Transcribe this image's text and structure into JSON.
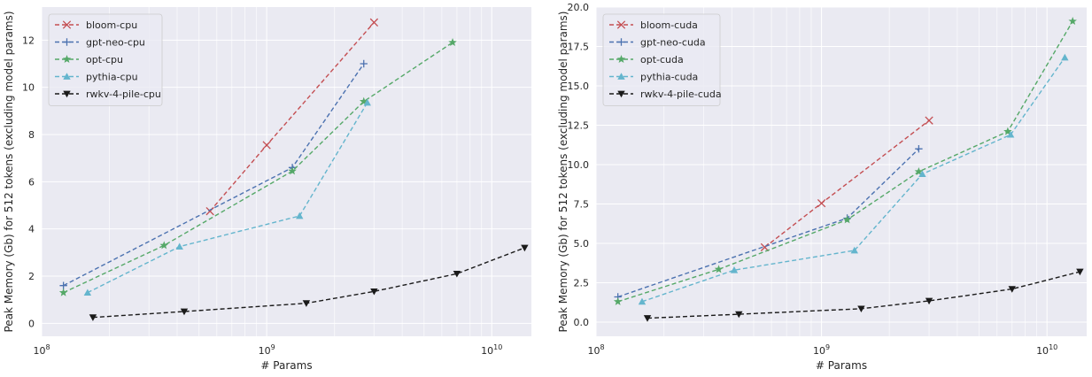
{
  "chart_data": [
    {
      "type": "line",
      "xscale": "log",
      "xlabel": "# Params",
      "ylabel": "Peak Memory (Gb) for 512 tokens (excluding model params)",
      "xlim": [
        100000000,
        15000000000
      ],
      "ylim": [
        -0.55,
        13.4
      ],
      "yticks": [
        0,
        2,
        4,
        6,
        8,
        10,
        12
      ],
      "ytick_labels": [
        "0",
        "2",
        "4",
        "6",
        "8",
        "10",
        "12"
      ],
      "xticks": [
        100000000,
        1000000000,
        10000000000
      ],
      "xtick_labels": [
        {
          "base": "10",
          "exp": "8"
        },
        {
          "base": "10",
          "exp": "9"
        },
        {
          "base": "10",
          "exp": "10"
        }
      ],
      "grid": true,
      "legend": "top-left",
      "series": [
        {
          "name": "bloom-cpu",
          "color": "#c44e52",
          "marker": "x",
          "x": [
            560000000,
            1000000000,
            3000000000
          ],
          "y": [
            4.75,
            7.55,
            12.75
          ]
        },
        {
          "name": "gpt-neo-cpu",
          "color": "#4c72b0",
          "marker": "plus",
          "x": [
            125000000,
            1300000000,
            2700000000
          ],
          "y": [
            1.6,
            6.6,
            11.0
          ]
        },
        {
          "name": "opt-cpu",
          "color": "#55a868",
          "marker": "star",
          "x": [
            125000000,
            350000000,
            1300000000,
            2700000000,
            6700000000
          ],
          "y": [
            1.3,
            3.3,
            6.45,
            9.4,
            11.9
          ]
        },
        {
          "name": "pythia-cpu",
          "color": "#64b5cd",
          "marker": "triangle-up",
          "x": [
            160000000,
            410000000,
            1400000000,
            2800000000
          ],
          "y": [
            1.3,
            3.25,
            4.55,
            9.35
          ]
        },
        {
          "name": "rwkv-4-pile-cpu",
          "color": "#1a1a1a",
          "marker": "triangle-down",
          "x": [
            169000000,
            430000000,
            1500000000,
            3000000000,
            7000000000,
            14000000000
          ],
          "y": [
            0.25,
            0.5,
            0.85,
            1.35,
            2.1,
            3.2
          ]
        }
      ]
    },
    {
      "type": "line",
      "xscale": "log",
      "xlabel": "# Params",
      "ylabel": "Peak Memory (Gb) for 512 tokens (excluding model params)",
      "xlim": [
        100000000,
        15000000000
      ],
      "ylim": [
        -0.9,
        20.0
      ],
      "yticks": [
        0,
        2.5,
        5,
        7.5,
        10,
        12.5,
        15,
        17.5,
        20
      ],
      "ytick_labels": [
        "0.0",
        "2.5",
        "5.0",
        "7.5",
        "10.0",
        "12.5",
        "15.0",
        "17.5",
        "20.0"
      ],
      "xticks": [
        100000000,
        1000000000,
        10000000000
      ],
      "xtick_labels": [
        {
          "base": "10",
          "exp": "8"
        },
        {
          "base": "10",
          "exp": "9"
        },
        {
          "base": "10",
          "exp": "10"
        }
      ],
      "grid": true,
      "legend": "top-left",
      "series": [
        {
          "name": "bloom-cuda",
          "color": "#c44e52",
          "marker": "x",
          "x": [
            560000000,
            1000000000,
            3000000000
          ],
          "y": [
            4.75,
            7.55,
            12.8
          ]
        },
        {
          "name": "gpt-neo-cuda",
          "color": "#4c72b0",
          "marker": "plus",
          "x": [
            125000000,
            1300000000,
            2700000000
          ],
          "y": [
            1.6,
            6.6,
            11.0
          ]
        },
        {
          "name": "opt-cuda",
          "color": "#55a868",
          "marker": "star",
          "x": [
            125000000,
            350000000,
            1300000000,
            2700000000,
            6700000000,
            13000000000
          ],
          "y": [
            1.3,
            3.35,
            6.5,
            9.55,
            12.1,
            19.1
          ]
        },
        {
          "name": "pythia-cuda",
          "color": "#64b5cd",
          "marker": "triangle-up",
          "x": [
            160000000,
            410000000,
            1400000000,
            2800000000,
            6900000000,
            12000000000
          ],
          "y": [
            1.3,
            3.3,
            4.55,
            9.4,
            11.9,
            16.8
          ]
        },
        {
          "name": "rwkv-4-pile-cuda",
          "color": "#1a1a1a",
          "marker": "triangle-down",
          "x": [
            169000000,
            430000000,
            1500000000,
            3000000000,
            7000000000,
            14000000000
          ],
          "y": [
            0.25,
            0.5,
            0.85,
            1.35,
            2.1,
            3.2
          ]
        }
      ]
    }
  ]
}
